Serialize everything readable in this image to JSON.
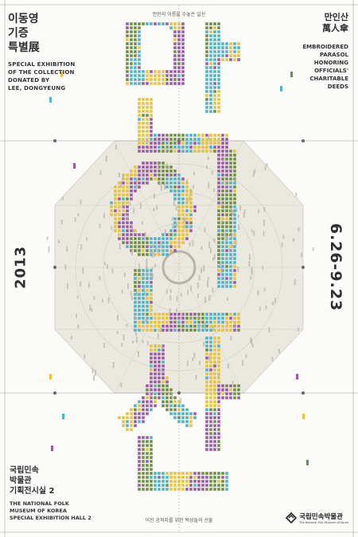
{
  "top_left": {
    "title_lines": [
      "이동영",
      "기증",
      "특별展"
    ],
    "subtitle_lines": [
      "SPECIAL EXHIBITION",
      "OF THE COLLECTION",
      "DONATED BY",
      "LEE, DONGYEUNG"
    ]
  },
  "top_center": "만인의 이름을 수놓은 일산",
  "top_right": {
    "title_lines": [
      "만인산",
      "萬人傘"
    ],
    "subtitle_lines": [
      "EMBROIDERED",
      "PARASOL",
      "HONORING",
      "OFFICIALS'",
      "CHARITABLE",
      "DEEDS"
    ]
  },
  "year": "2013",
  "dates": "6.26-9.23",
  "big_title_chars": [
    "만",
    "인",
    "산"
  ],
  "bottom_left": {
    "title_lines": [
      "국립민속",
      "박물관",
      "기획전시실 2"
    ],
    "subtitle_lines": [
      "THE NATIONAL FOLK",
      "MUSEUM OF KOREA",
      "SPECIAL EXHIBITION HALL 2"
    ]
  },
  "bottom_center": "어진 공직자를 위한 백성들의 선물",
  "logo": {
    "name": "국립민속박물관",
    "english": "The National Folk Museum of Korea",
    "icon": "museum-logo-icon"
  },
  "colors": {
    "background": "#fbfbf9",
    "octagon": "#ebe8e0",
    "cyan": "#4fb3c8",
    "yellow": "#e8c23a",
    "purple": "#9a5aa8",
    "green": "#6f8f45",
    "dark": "#2e2e2e"
  }
}
